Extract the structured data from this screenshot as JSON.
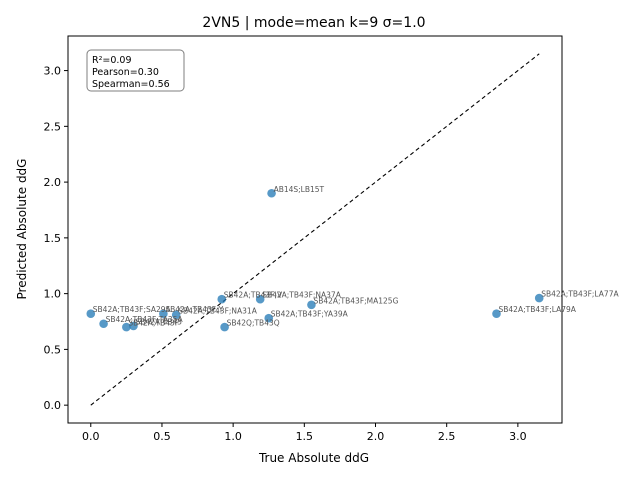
{
  "chart_data": {
    "type": "scatter",
    "title": "2VN5 | mode=mean k=9 σ=1.0",
    "xlabel": "True Absolute ddG",
    "ylabel": "Predicted Absolute ddG",
    "xlim": [
      -0.16,
      3.31
    ],
    "ylim": [
      -0.16,
      3.31
    ],
    "xticks": [
      0.0,
      0.5,
      1.0,
      1.5,
      2.0,
      2.5,
      3.0
    ],
    "yticks": [
      0.0,
      0.5,
      1.0,
      1.5,
      2.0,
      2.5,
      3.0
    ],
    "tick_labels": [
      "0.0",
      "0.5",
      "1.0",
      "1.5",
      "2.0",
      "2.5",
      "3.0"
    ],
    "grid": false,
    "reference_line": {
      "style": "dashed",
      "from": [
        0.0,
        0.0
      ],
      "to": [
        3.15,
        3.15
      ]
    },
    "point_color": "#1f77b4",
    "stats_box": {
      "placement": "top-left",
      "lines": [
        "R²=0.09",
        "Pearson=0.30",
        "Spearman=0.56"
      ]
    },
    "points": [
      {
        "label": "AB14S;LB15T",
        "x": 1.27,
        "y": 1.9
      },
      {
        "label": "SB42A;TB43F;LA77A",
        "x": 3.15,
        "y": 0.96
      },
      {
        "label": "SB42A;TB43F;LA79A",
        "x": 2.85,
        "y": 0.82
      },
      {
        "label": "SB42A;TB43F;MA125G",
        "x": 1.55,
        "y": 0.9
      },
      {
        "label": "SB42A;TB43F;NA37A",
        "x": 1.19,
        "y": 0.95
      },
      {
        "label": "SB42A;TB43F;YA39A",
        "x": 1.25,
        "y": 0.78
      },
      {
        "label": "SB42A;TB43F;V",
        "x": 0.92,
        "y": 0.95
      },
      {
        "label": "SB42Q;TB43Q",
        "x": 0.94,
        "y": 0.7
      },
      {
        "label": "SB42A;TB43F;NA31A",
        "x": 0.6,
        "y": 0.81
      },
      {
        "label": "SB42A;TB43F;Y",
        "x": 0.51,
        "y": 0.82
      },
      {
        "label": "SB42A;TB43F;SA29A",
        "x": 0.0,
        "y": 0.82
      },
      {
        "label": "SB42A;TB43F;TA35A",
        "x": 0.09,
        "y": 0.73
      },
      {
        "label": "SB42A;TB43F",
        "x": 0.25,
        "y": 0.7
      },
      {
        "label": "SB42A;TB43",
        "x": 0.3,
        "y": 0.71
      }
    ]
  }
}
